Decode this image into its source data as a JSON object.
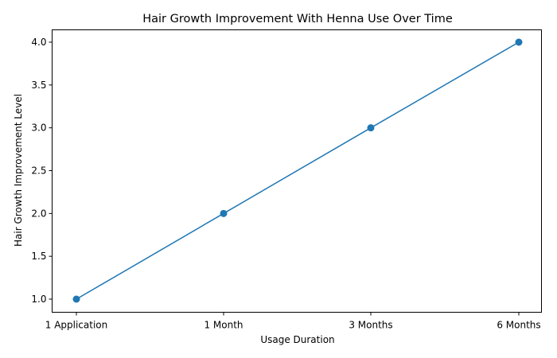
{
  "chart_data": {
    "type": "line",
    "title": "Hair Growth Improvement With Henna Use Over Time",
    "xlabel": "Usage Duration",
    "ylabel": "Hair Growth Improvement Level",
    "categories": [
      "1 Application",
      "1 Month",
      "3 Months",
      "6 Months"
    ],
    "series": [
      {
        "name": "Hair Growth Improvement",
        "values": [
          1,
          2,
          3,
          4
        ],
        "color": "#1f77b4",
        "marker": "circle"
      }
    ],
    "yticks": [
      "1.0",
      "1.5",
      "2.0",
      "2.5",
      "3.0",
      "3.5",
      "4.0"
    ],
    "ylim": [
      0.85,
      4.15
    ],
    "grid": false,
    "legend": null
  }
}
